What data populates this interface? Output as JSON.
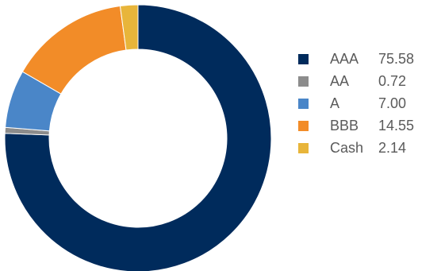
{
  "chart_data": {
    "type": "pie",
    "categories": [
      "AAA",
      "AA",
      "A",
      "BBB",
      "Cash"
    ],
    "values": [
      75.58,
      0.72,
      7.0,
      14.55,
      2.14
    ],
    "value_labels": [
      "75.58",
      "0.72",
      "7.00",
      "14.55",
      "2.14"
    ],
    "colors": [
      "#002b5c",
      "#8c8c8c",
      "#4a86c8",
      "#f28c28",
      "#e8b53a"
    ],
    "donut": true,
    "start_angle_deg": 0,
    "direction": "clockwise",
    "title": "",
    "legend_position": "right"
  }
}
